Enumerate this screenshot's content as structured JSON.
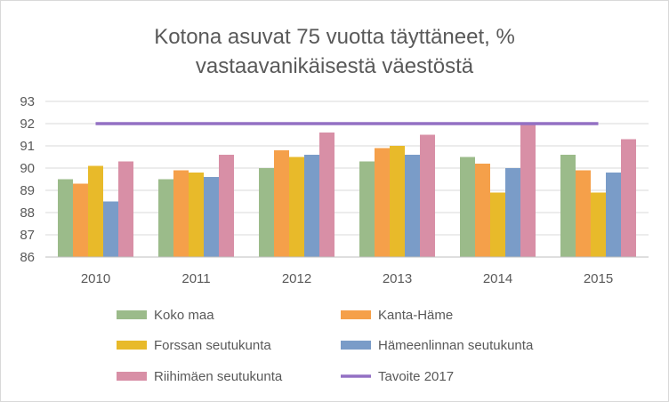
{
  "chart_data": {
    "type": "bar",
    "title_lines": [
      "Kotona asuvat 75 vuotta täyttäneet, %",
      "vastaavanikäisestä väestöstä"
    ],
    "categories": [
      "2010",
      "2011",
      "2012",
      "2013",
      "2014",
      "2015"
    ],
    "ylim": [
      86,
      93
    ],
    "yticks": [
      86,
      87,
      88,
      89,
      90,
      91,
      92,
      93
    ],
    "grid": true,
    "legend_position": "bottom",
    "series": [
      {
        "name": "Koko maa",
        "color": "#9bbb8a",
        "values": [
          89.5,
          89.5,
          90.0,
          90.3,
          90.5,
          90.6
        ]
      },
      {
        "name": "Kanta-Häme",
        "color": "#f5a04a",
        "values": [
          89.3,
          89.9,
          90.8,
          90.9,
          90.2,
          89.9
        ]
      },
      {
        "name": "Forssan seutukunta",
        "color": "#e8ba2a",
        "values": [
          90.1,
          89.8,
          90.5,
          91.0,
          88.9,
          88.9
        ]
      },
      {
        "name": "Hämeenlinnan seutukunta",
        "color": "#7a9cc8",
        "values": [
          88.5,
          89.6,
          90.6,
          90.6,
          90.0,
          89.8
        ]
      },
      {
        "name": "Riihimäen seutukunta",
        "color": "#d88fa6",
        "values": [
          90.3,
          90.6,
          91.6,
          91.5,
          92.0,
          91.3
        ]
      }
    ],
    "target_line": {
      "name": "Tavoite 2017",
      "color": "#9370c4",
      "value": 92
    }
  }
}
